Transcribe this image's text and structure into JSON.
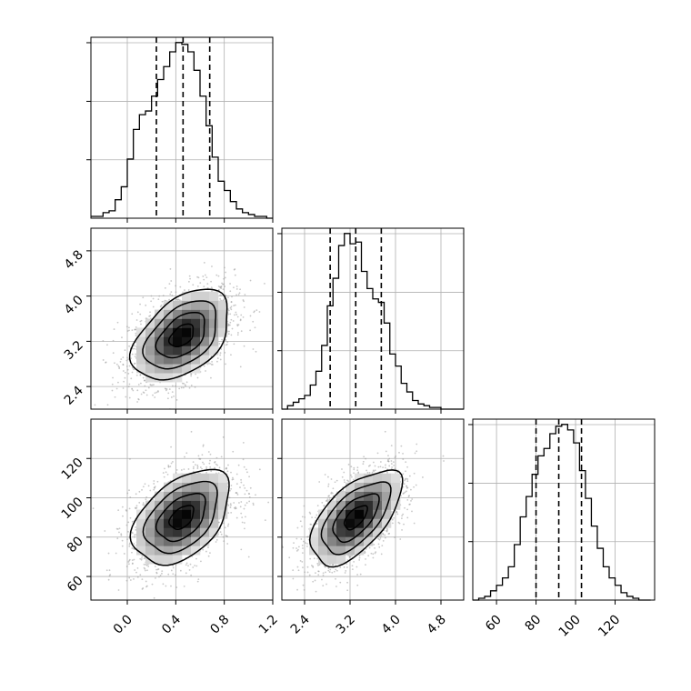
{
  "chart_data": {
    "type": "corner",
    "grid": true,
    "colors": {
      "line": "#000000",
      "grid": "#b0b0b0",
      "scatter": "#9a9a9a",
      "density_dark": "#000000"
    },
    "params": [
      {
        "hist": {
          "range": [
            -0.3,
            1.2
          ],
          "edges": [
            -0.3,
            -0.25,
            -0.2,
            -0.15,
            -0.1,
            -0.05,
            0,
            0.05,
            0.1,
            0.15,
            0.2,
            0.25,
            0.3,
            0.35,
            0.4,
            0.45,
            0.5,
            0.55,
            0.6,
            0.65,
            0.7,
            0.75,
            0.8,
            0.85,
            0.9,
            0.95,
            1.0,
            1.05,
            1.1,
            1.15,
            1.2
          ],
          "counts": [
            1,
            1,
            3,
            4,
            10,
            17,
            32,
            48,
            56,
            58,
            66,
            75,
            82,
            90,
            95,
            94,
            90,
            80,
            66,
            50,
            33,
            20,
            15,
            9,
            5,
            3,
            2,
            1,
            1,
            0
          ],
          "quantiles": [
            0.24,
            0.46,
            0.68
          ]
        },
        "ticks": [
          0.0,
          0.4,
          0.8,
          1.2
        ],
        "tick_labels": [
          "0.0",
          "0.4",
          "0.8",
          "1.2"
        ]
      },
      {
        "hist": {
          "range": [
            2.0,
            5.2
          ],
          "edges": [
            2.0,
            2.1,
            2.2,
            2.3,
            2.4,
            2.5,
            2.6,
            2.7,
            2.8,
            2.9,
            3.0,
            3.1,
            3.2,
            3.3,
            3.4,
            3.5,
            3.6,
            3.7,
            3.8,
            3.9,
            4.0,
            4.1,
            4.2,
            4.3,
            4.4,
            4.5,
            4.6,
            4.7,
            4.8,
            4.9,
            5.0,
            5.1,
            5.2
          ],
          "counts": [
            0,
            2,
            4,
            6,
            8,
            14,
            22,
            37,
            60,
            76,
            95,
            102,
            96,
            97,
            80,
            70,
            64,
            62,
            50,
            32,
            25,
            15,
            10,
            5,
            3,
            2,
            1,
            1,
            0,
            0,
            0,
            0
          ],
          "quantiles": [
            2.85,
            3.3,
            3.75
          ]
        },
        "ticks": [
          2.4,
          3.2,
          4.0,
          4.8
        ],
        "tick_labels": [
          "2.4",
          "3.2",
          "4.0",
          "4.8"
        ]
      },
      {
        "hist": {
          "range": [
            48,
            140
          ],
          "edges": [
            48,
            51,
            54,
            57,
            60,
            63,
            66,
            69,
            72,
            75,
            78,
            81,
            84,
            87,
            90,
            93,
            96,
            99,
            102,
            105,
            108,
            111,
            114,
            117,
            120,
            123,
            126,
            129,
            132,
            135,
            138
          ],
          "counts": [
            0,
            1,
            2,
            5,
            8,
            12,
            18,
            30,
            45,
            56,
            68,
            78,
            82,
            90,
            94,
            95,
            92,
            85,
            70,
            55,
            40,
            28,
            18,
            12,
            8,
            4,
            2,
            1,
            0,
            0
          ],
          "quantiles": [
            80,
            91.5,
            103
          ]
        },
        "ticks": [
          60,
          80,
          100,
          120
        ],
        "tick_labels": [
          "60",
          "80",
          "100",
          "120"
        ]
      }
    ],
    "pairs": [
      {
        "row": 1,
        "col": 0,
        "mean": [
          0.45,
          3.3
        ],
        "sd": [
          0.2,
          0.4
        ],
        "corr": 0.45,
        "n_points": 1800
      },
      {
        "row": 2,
        "col": 0,
        "mean": [
          0.45,
          90
        ],
        "sd": [
          0.2,
          12
        ],
        "corr": 0.45,
        "n_points": 1800
      },
      {
        "row": 2,
        "col": 1,
        "mean": [
          3.3,
          90
        ],
        "sd": [
          0.4,
          12
        ],
        "corr": 0.6,
        "n_points": 1800
      }
    ],
    "contour_levels_sigma": [
      0.5,
      1.0,
      1.5,
      2.0
    ]
  }
}
